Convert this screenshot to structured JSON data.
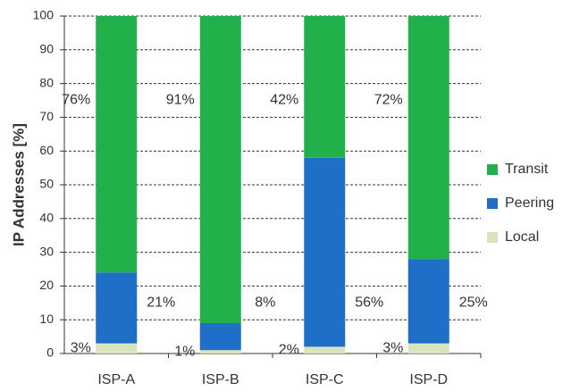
{
  "chart_data": {
    "type": "stacked-bar",
    "y_label": "IP Addresses [%]",
    "categories": [
      "ISP-A",
      "ISP-B",
      "ISP-C",
      "ISP-D"
    ],
    "series": [
      {
        "name": "Local",
        "color": "#d7e4bd",
        "values": [
          3,
          1,
          2,
          3
        ],
        "value_labels": [
          "3%",
          "1%",
          "2%",
          "3%"
        ]
      },
      {
        "name": "Peering",
        "color": "#1f6fc8",
        "values": [
          21,
          8,
          56,
          25
        ],
        "value_labels": [
          "21%",
          "8%",
          "56%",
          "25%"
        ]
      },
      {
        "name": "Transit",
        "color": "#22b04b",
        "values": [
          76,
          91,
          42,
          72
        ],
        "value_labels": [
          "76%",
          "91%",
          "42%",
          "72%"
        ]
      }
    ],
    "ylim": [
      0,
      100
    ],
    "yticks": [
      0,
      10,
      20,
      30,
      40,
      50,
      60,
      70,
      80,
      90,
      100
    ],
    "grid": true,
    "legend": "right"
  }
}
